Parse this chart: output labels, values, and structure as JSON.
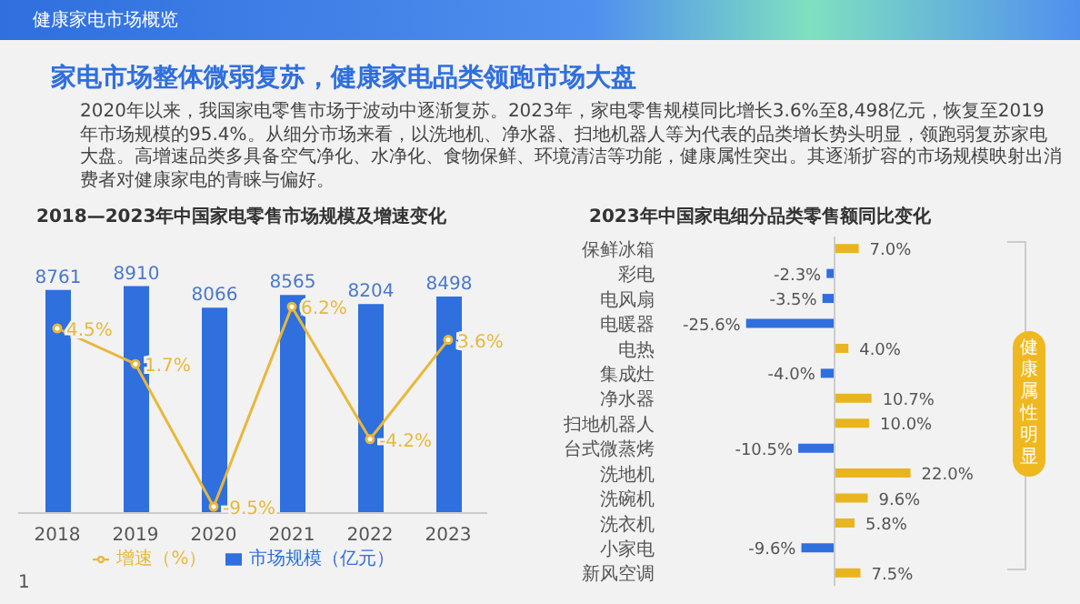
{
  "chart_data": [
    {
      "type": "other",
      "subtitle": "健康家电市场概览",
      "title": "家电市场整体微弱复苏，健康家电品类领跑市场大盘",
      "annotations": [
        "2020年以来，我国家电零售市场于波动中逐渐复苏。2023年，家电零售规模同比增长3.6%至8,498亿元，恢复至2019年市场规模的95.4%。从细分市场来看，以洗地机、净水器、扫地机器人等为代表的品类增长势头明显，领跑弱复苏家电大盘。高增速品类多具备空气净化、水净化、食物保鲜、环境清洁等功能，健康属性突出。其逐渐扩容的市场规模映射出消费者对健康家电的青睐与偏好。",
        "1"
      ]
    },
    {
      "type": "bar",
      "title": "2018—2023年中国家电零售市场规模及增速变化",
      "categories": [
        "2018",
        "2019",
        "2020",
        "2021",
        "2022",
        "2023"
      ],
      "series": [
        {
          "name": "市场规模（亿元）",
          "color": "#2f6fde",
          "values": [
            8761,
            8910,
            8066,
            8565,
            8204,
            8498
          ],
          "value_labels": [
            "8761",
            "8910",
            "8066",
            "8565",
            "8204",
            "8498"
          ]
        },
        {
          "name": "增速（%）",
          "type": "line",
          "axis": "y2",
          "color": "#e8b83a",
          "values": [
            4.5,
            1.7,
            -9.5,
            6.2,
            -4.2,
            3.6
          ],
          "value_labels": [
            "4.5%",
            "1.7%",
            "-9.5%",
            "6.2%",
            "-4.2%",
            "3.6%"
          ]
        }
      ],
      "tick_labels": "x",
      "legend": "bottom",
      "marker": "circle"
    },
    {
      "type": "bar",
      "orientation": "horizontal",
      "title": "2023年中国家电细分品类零售额同比变化",
      "categories": [
        "保鲜冰箱",
        "彩电",
        "电风扇",
        "电暖器",
        "电热",
        "集成灶",
        "净水器",
        "扫地机器人",
        "台式微蒸烤",
        "洗地机",
        "洗碗机",
        "洗衣机",
        "小家电",
        "新风空调"
      ],
      "values": [
        7.0,
        -2.3,
        -3.5,
        -25.6,
        4.0,
        -4.0,
        10.7,
        10.0,
        -10.5,
        22.0,
        9.6,
        5.8,
        -9.6,
        7.5
      ],
      "colors": [
        "#e8b520",
        "#2f6fde",
        "#2f6fde",
        "#2f6fde",
        "#e8b520",
        "#2f6fde",
        "#e8b520",
        "#e8b520",
        "#2f6fde",
        "#e8b520",
        "#e8b520",
        "#e8b520",
        "#2f6fde",
        "#e8b520"
      ],
      "value_labels": [
        "7.0%",
        "-2.3%",
        "-3.5%",
        "-25.6%",
        "4.0%",
        "-4.0%",
        "10.7%",
        "10.0%",
        "-10.5%",
        "22.0%",
        "9.6%",
        "5.8%",
        "-9.6%",
        "7.5%"
      ],
      "tick_labels": "y",
      "annotations": [
        "健康属性明显"
      ]
    }
  ]
}
